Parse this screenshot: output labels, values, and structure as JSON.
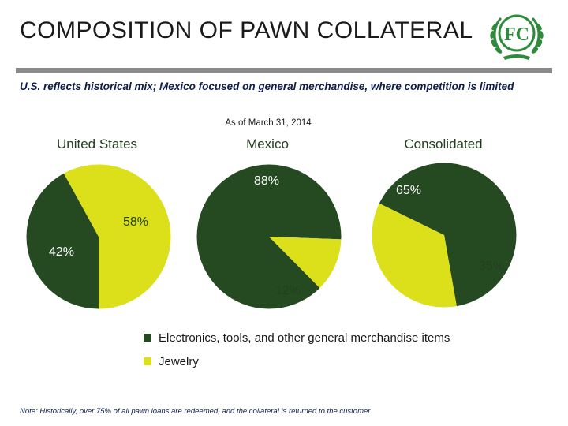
{
  "page": {
    "title": "COMPOSITION OF PAWN COLLATERAL",
    "subtitle": "U.S. reflects historical mix; Mexico focused on general merchandise, where competition is limited",
    "as_of": "As of March 31, 2014",
    "note": "Note: Historically, over 75% of all pawn loans are redeemed, and the collateral is returned to the customer.",
    "logo_text": "FC",
    "logo_icon": "laurel-wreath-logo-icon"
  },
  "colors": {
    "general_merchandise": "#254a22",
    "jewelry": "#dbe01a",
    "rule": "#8a8a8a",
    "subtitle": "#0c1d4a"
  },
  "chart_data": [
    {
      "type": "pie",
      "title": "United States",
      "slices": [
        {
          "name": "Electronics, tools, and other general merchandise  items",
          "value": 42,
          "label": "42%"
        },
        {
          "name": "Jewelry",
          "value": 58,
          "label": "58%"
        }
      ]
    },
    {
      "type": "pie",
      "title": "Mexico",
      "slices": [
        {
          "name": "Electronics, tools, and other general merchandise  items",
          "value": 88,
          "label": "88%"
        },
        {
          "name": "Jewelry",
          "value": 12,
          "label": "12%"
        }
      ]
    },
    {
      "type": "pie",
      "title": "Consolidated",
      "slices": [
        {
          "name": "Electronics, tools, and other general merchandise  items",
          "value": 65,
          "label": "65%"
        },
        {
          "name": "Jewelry",
          "value": 35,
          "label": "35%"
        }
      ]
    }
  ],
  "legend": [
    {
      "label": "Electronics, tools, and other general merchandise  items",
      "color": "#254a22"
    },
    {
      "label": "Jewelry",
      "color": "#dbe01a"
    }
  ]
}
